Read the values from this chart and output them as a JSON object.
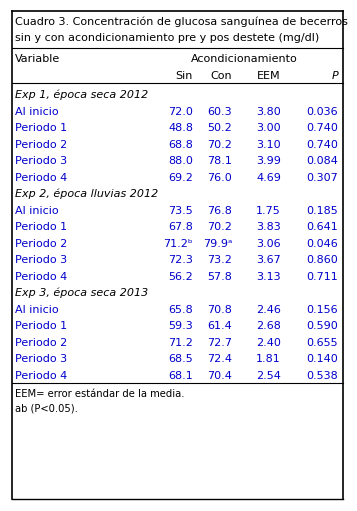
{
  "title_line1": "Cuadro 3. Concentración de glucosa sanguínea de becerros",
  "title_line2": "sin y con acondicionamiento pre y pos destete (mg/dl)",
  "col_header_1": "Variable",
  "col_header_group": "Acondicionamiento",
  "col_headers": [
    "Sin",
    "Con",
    "EEM",
    "P"
  ],
  "sections": [
    {
      "label": "Exp 1, época seca 2012",
      "rows": [
        {
          "var": "Al inicio",
          "sin": "72.0",
          "con": "60.3",
          "eem": "3.80",
          "p": "0.036"
        },
        {
          "var": "Periodo 1",
          "sin": "48.8",
          "con": "50.2",
          "eem": "3.00",
          "p": "0.740"
        },
        {
          "var": "Periodo 2",
          "sin": "68.8",
          "con": "70.2",
          "eem": "3.10",
          "p": "0.740"
        },
        {
          "var": "Periodo 3",
          "sin": "88.0",
          "con": "78.1",
          "eem": "3.99",
          "p": "0.084"
        },
        {
          "var": "Periodo 4",
          "sin": "69.2",
          "con": "76.0",
          "eem": "4.69",
          "p": "0.307"
        }
      ]
    },
    {
      "label": "Exp 2, época lluvias 2012",
      "rows": [
        {
          "var": "Al inicio",
          "sin": "73.5",
          "con": "76.8",
          "eem": "1.75",
          "p": "0.185"
        },
        {
          "var": "Periodo 1",
          "sin": "67.8",
          "con": "70.2",
          "eem": "3.83",
          "p": "0.641"
        },
        {
          "var": "Periodo 2",
          "sin": "71.2ᵇ",
          "con": "79.9ᵃ",
          "eem": "3.06",
          "p": "0.046"
        },
        {
          "var": "Periodo 3",
          "sin": "72.3",
          "con": "73.2",
          "eem": "3.67",
          "p": "0.860"
        },
        {
          "var": "Periodo 4",
          "sin": "56.2",
          "con": "57.8",
          "eem": "3.13",
          "p": "0.711"
        }
      ]
    },
    {
      "label": "Exp 3, época seca 2013",
      "rows": [
        {
          "var": "Al inicio",
          "sin": "65.8",
          "con": "70.8",
          "eem": "2.46",
          "p": "0.156"
        },
        {
          "var": "Periodo 1",
          "sin": "59.3",
          "con": "61.4",
          "eem": "2.68",
          "p": "0.590"
        },
        {
          "var": "Periodo 2",
          "sin": "71.2",
          "con": "72.7",
          "eem": "2.40",
          "p": "0.655"
        },
        {
          "var": "Periodo 3",
          "sin": "68.5",
          "con": "72.4",
          "eem": "1.81",
          "p": "0.140"
        },
        {
          "var": "Periodo 4",
          "sin": "68.1",
          "con": "70.4",
          "eem": "2.54",
          "p": "0.538"
        }
      ]
    }
  ],
  "footnotes": [
    "EEM= error estándar de la media.",
    "ab (P<0.05)."
  ],
  "text_color": "#0000CC",
  "header_color": "#000000",
  "title_color": "#000000",
  "bg_color": "#FFFFFF",
  "border_color": "#000000",
  "title_fontsize": 8.0,
  "header_fontsize": 8.0,
  "data_fontsize": 8.0,
  "section_fontsize": 8.0,
  "footnote_fontsize": 7.2
}
